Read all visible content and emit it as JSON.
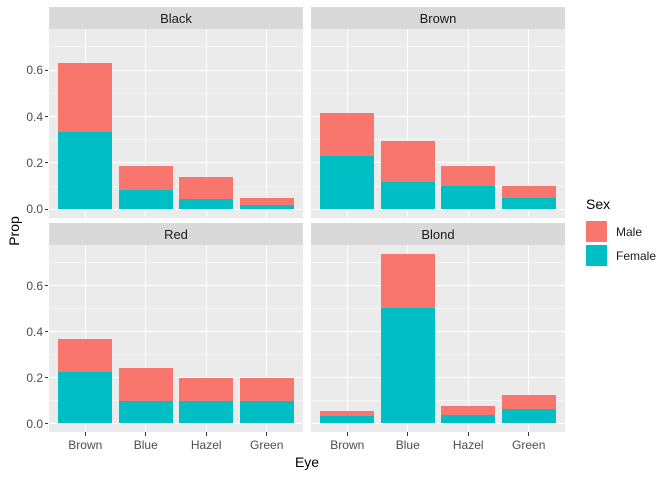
{
  "chart_data": {
    "type": "bar",
    "stacked": true,
    "title": "",
    "xlabel": "Eye",
    "ylabel": "Prop",
    "categories": [
      "Brown",
      "Blue",
      "Hazel",
      "Green"
    ],
    "ytick_labels": [
      "0.0",
      "0.2",
      "0.4",
      "0.6"
    ],
    "ytick_values": [
      0,
      0.2,
      0.4,
      0.6
    ],
    "minor_gridlines": [
      0.1,
      0.3,
      0.5,
      0.7
    ],
    "ylim": [
      -0.037,
      0.777
    ],
    "grid": true,
    "legend": {
      "title": "Sex",
      "position": "right",
      "items": [
        {
          "label": "Male",
          "color": "#F8766D"
        },
        {
          "label": "Female",
          "color": "#00BFC4"
        }
      ]
    },
    "series_colors": {
      "Male": "#F8766D",
      "Female": "#00BFC4"
    },
    "stack_order_bottom_to_top": [
      "Female",
      "Male"
    ],
    "facets": [
      {
        "label": "Black",
        "series": [
          {
            "name": "Female",
            "values": [
              0.333,
              0.083,
              0.046,
              0.019
            ]
          },
          {
            "name": "Male",
            "values": [
              0.296,
              0.102,
              0.093,
              0.028
            ]
          }
        ]
      },
      {
        "label": "Brown",
        "series": [
          {
            "name": "Female",
            "values": [
              0.231,
              0.119,
              0.101,
              0.049
            ]
          },
          {
            "name": "Male",
            "values": [
              0.185,
              0.175,
              0.087,
              0.052
            ]
          }
        ]
      },
      {
        "label": "Red",
        "series": [
          {
            "name": "Female",
            "values": [
              0.225,
              0.099,
              0.099,
              0.099
            ]
          },
          {
            "name": "Male",
            "values": [
              0.141,
              0.141,
              0.099,
              0.099
            ]
          }
        ]
      },
      {
        "label": "Blond",
        "series": [
          {
            "name": "Female",
            "values": [
              0.031,
              0.504,
              0.039,
              0.063
            ]
          },
          {
            "name": "Male",
            "values": [
              0.024,
              0.236,
              0.039,
              0.063
            ]
          }
        ]
      }
    ],
    "colors": {
      "panel_background": "#EBEBEB",
      "strip_background": "#D9D9D9",
      "gridline": "#FFFFFF",
      "axis_text": "#4D4D4D",
      "strip_text": "#1A1A1A",
      "title_text": "#000000",
      "tick_mark": "#333333"
    }
  }
}
